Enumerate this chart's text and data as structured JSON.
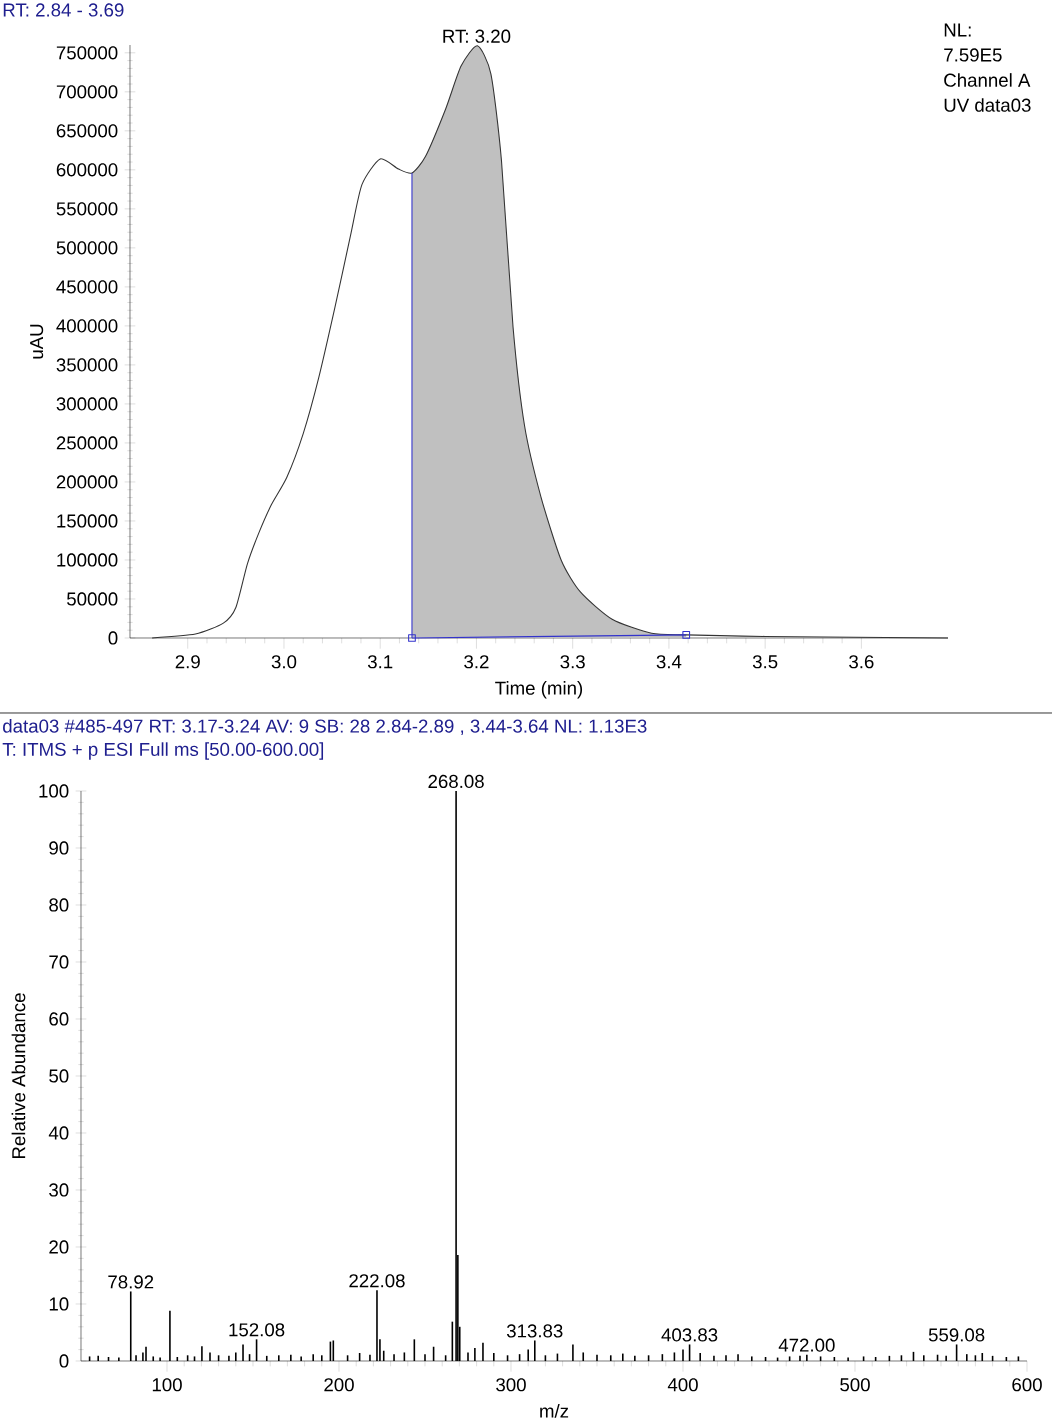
{
  "chart_data": [
    {
      "type": "line",
      "title": "RT: 2.84 - 3.69",
      "xlabel": "Time (min)",
      "ylabel": "uAU",
      "annotations": [
        {
          "text": "RT: 3.20",
          "x": 3.2,
          "y": 759000
        },
        "NL:",
        "7.59E5",
        "Channel A",
        "UV data03"
      ],
      "xlim": [
        2.84,
        3.69
      ],
      "ylim": [
        0,
        760000
      ],
      "xticks": [
        2.9,
        {
          "value": 3.0,
          "label": "3.0"
        },
        3.1,
        3.2,
        3.3,
        3.4,
        3.5,
        3.6
      ],
      "yticks": [
        0,
        50000,
        100000,
        150000,
        200000,
        250000,
        300000,
        350000,
        400000,
        450000,
        500000,
        550000,
        600000,
        650000,
        700000,
        750000
      ],
      "series": [
        {
          "type": "area",
          "color": "#c0c0c0",
          "x": [
            3.133,
            3.147,
            3.168,
            3.184,
            3.201,
            3.215,
            3.226,
            3.238,
            3.25,
            3.267,
            3.288,
            3.308,
            3.341,
            3.382,
            3.418
          ],
          "values": [
            596000,
            617000,
            678000,
            733000,
            759000,
            723000,
            612000,
            399000,
            272000,
            181000,
            100000,
            59000,
            24000,
            6000,
            4000
          ]
        },
        {
          "type": "line",
          "color": "#333333",
          "x": [
            2.863,
            2.908,
            2.937,
            2.95,
            2.962,
            2.974,
            2.987,
            3.003,
            3.02,
            3.036,
            3.053,
            3.069,
            3.081,
            3.1,
            3.119,
            3.133,
            3.147,
            3.168,
            3.184,
            3.201,
            3.215,
            3.226,
            3.238,
            3.25,
            3.267,
            3.288,
            3.308,
            3.341,
            3.382,
            3.418,
            3.5,
            3.69
          ],
          "values": [
            0,
            5000,
            19000,
            39000,
            95000,
            135000,
            171000,
            206000,
            262000,
            333000,
            424000,
            515000,
            581000,
            614000,
            601000,
            596000,
            617000,
            678000,
            733000,
            759000,
            723000,
            612000,
            399000,
            272000,
            181000,
            100000,
            59000,
            24000,
            6000,
            4000,
            2000,
            0
          ]
        },
        {
          "type": "line",
          "color": "#3333cc",
          "x": [
            3.133,
            3.133
          ],
          "values": [
            0,
            596000
          ]
        },
        {
          "type": "line",
          "color": "#3333cc",
          "marker": "square",
          "x": [
            3.133,
            3.418
          ],
          "values": [
            0,
            4000
          ]
        }
      ]
    },
    {
      "type": "bar",
      "title": "data03 #485-497   RT: 3.17-3.24   AV: 9   SB: 28  2.84-2.89 , 3.44-3.64   NL: 1.13E3",
      "subtitle": "T: ITMS + p ESI Full ms [50.00-600.00]",
      "xlabel": "m/z",
      "ylabel": "Relative Abundance",
      "color": "#000000",
      "annotations": [
        {
          "text": "78.92",
          "x": 78.92,
          "y": 12.2
        },
        {
          "text": "152.08",
          "x": 152.08,
          "y": 3.8
        },
        {
          "text": "222.08",
          "x": 222.08,
          "y": 12.4
        },
        {
          "text": "268.08",
          "x": 268.08,
          "y": 100
        },
        {
          "text": "313.83",
          "x": 313.83,
          "y": 3.6
        },
        {
          "text": "403.83",
          "x": 403.83,
          "y": 2.9
        },
        {
          "text": "472.00",
          "x": 472.0,
          "y": 1.1
        },
        {
          "text": "559.08",
          "x": 559.08,
          "y": 2.9
        }
      ],
      "xlim": [
        50,
        600
      ],
      "ylim": [
        0,
        100
      ],
      "xticks": [
        100,
        200,
        300,
        400,
        500,
        600
      ],
      "yticks": [
        0,
        10,
        20,
        30,
        40,
        50,
        60,
        70,
        80,
        90,
        100
      ],
      "x": [
        55,
        60,
        66,
        72,
        78.92,
        82,
        86,
        87.8,
        92,
        96,
        101.7,
        106,
        112,
        116,
        120.3,
        125,
        130,
        136,
        140,
        144.2,
        148,
        152.08,
        158,
        165,
        172,
        178,
        185,
        190,
        195,
        196.7,
        205,
        212,
        218,
        222.08,
        223.8,
        226,
        232,
        238,
        243.8,
        250,
        255,
        262,
        265.9,
        268.08,
        269.1,
        270.2,
        275,
        279,
        283.7,
        290,
        298,
        305,
        310,
        313.83,
        320,
        327,
        336,
        342,
        350,
        358,
        365,
        372,
        380,
        388,
        395,
        400,
        403.83,
        410,
        418,
        425,
        432,
        440,
        448,
        455,
        462,
        468,
        472,
        480,
        488,
        496,
        505,
        512,
        520,
        527,
        534,
        540,
        548,
        553,
        559.08,
        565,
        570,
        574,
        580,
        588,
        595
      ],
      "values": [
        0.8,
        0.9,
        0.7,
        0.6,
        12.2,
        1.0,
        1.5,
        2.5,
        0.8,
        0.6,
        8.8,
        0.7,
        1.0,
        0.8,
        2.6,
        1.5,
        1.0,
        0.9,
        1.5,
        2.9,
        1.2,
        3.8,
        0.9,
        1.0,
        1.1,
        0.8,
        1.2,
        1.0,
        3.4,
        3.6,
        1.0,
        1.4,
        1.1,
        12.4,
        3.8,
        1.8,
        1.2,
        1.5,
        3.8,
        1.2,
        2.5,
        1.0,
        6.9,
        100,
        18.6,
        6.0,
        1.5,
        2.3,
        3.2,
        1.4,
        1.0,
        1.2,
        2.0,
        3.6,
        1.0,
        1.3,
        2.9,
        1.5,
        1.1,
        1.0,
        1.3,
        0.9,
        1.0,
        1.2,
        1.5,
        2.0,
        2.9,
        1.4,
        0.9,
        1.0,
        1.2,
        0.8,
        0.7,
        0.6,
        0.8,
        0.9,
        1.1,
        0.8,
        0.7,
        0.6,
        0.8,
        0.7,
        0.9,
        1.0,
        1.6,
        1.0,
        1.1,
        0.9,
        2.9,
        1.2,
        1.0,
        1.4,
        0.9,
        0.7,
        0.8
      ]
    }
  ]
}
